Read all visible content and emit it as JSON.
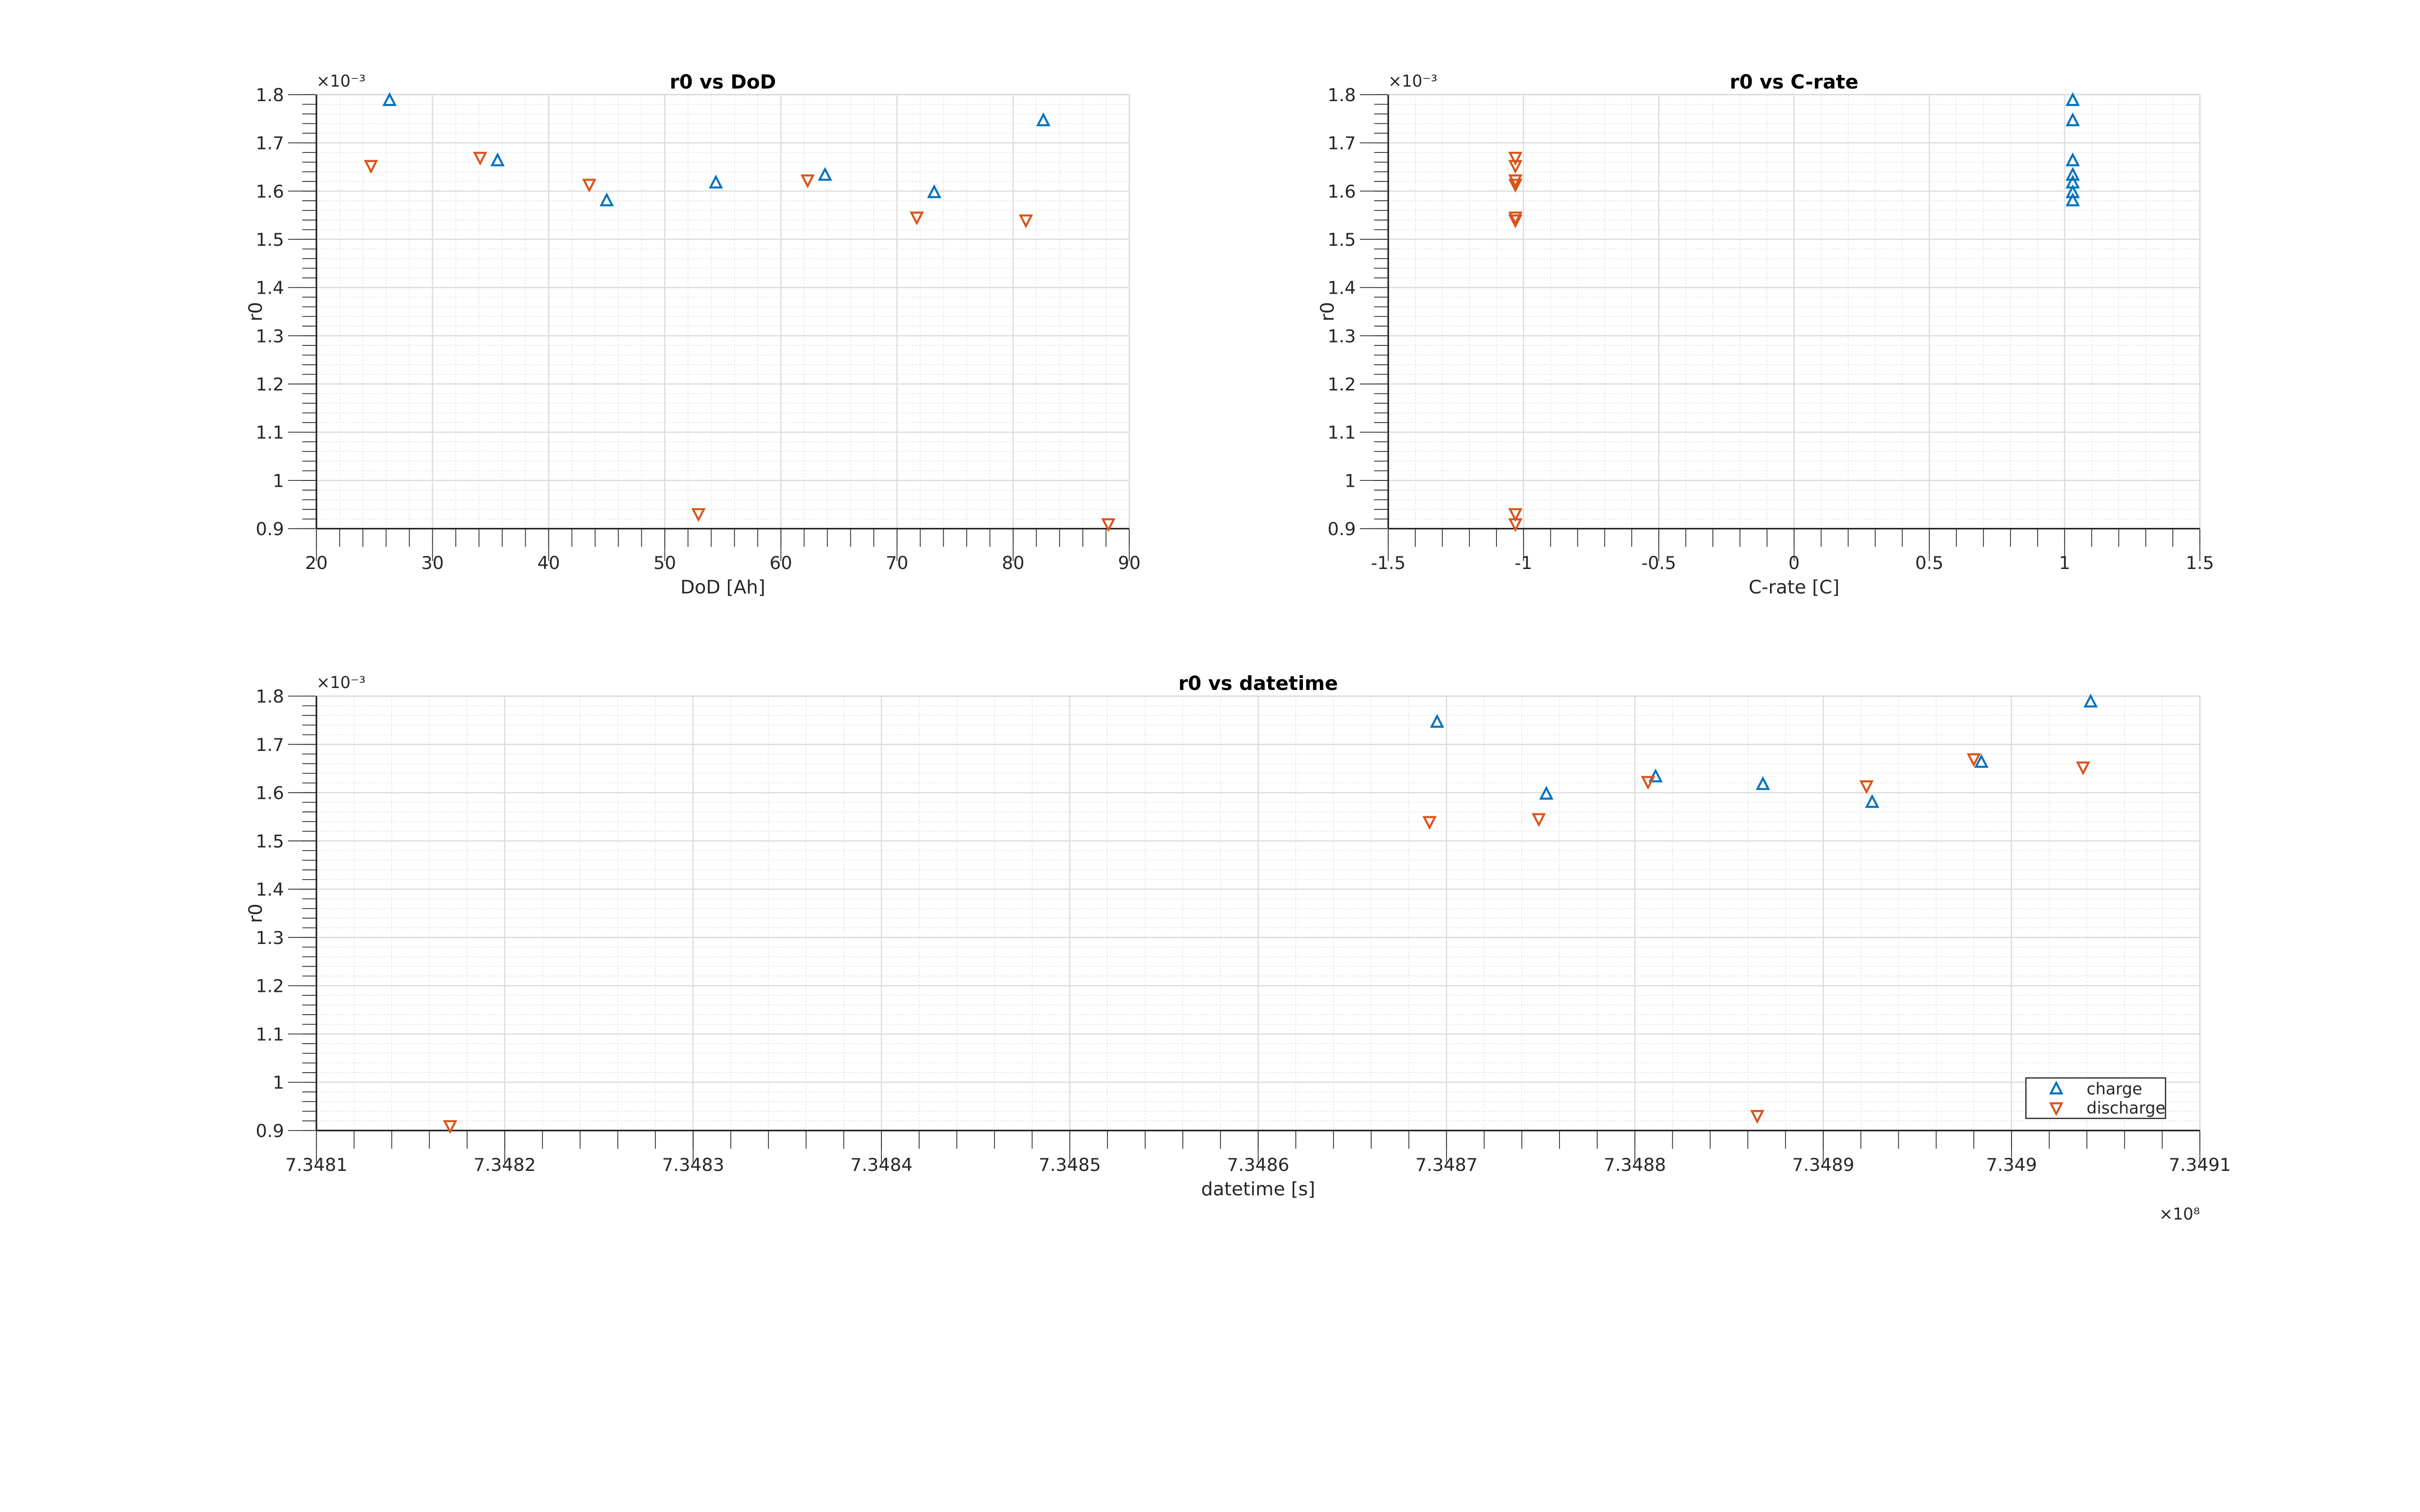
{
  "colors": {
    "charge": "#0072BD",
    "discharge": "#D95319",
    "grid": "#dcdcdc",
    "axis": "#262626"
  },
  "legend": {
    "entries": [
      "charge",
      "discharge"
    ],
    "placement": "bottom-right"
  },
  "chart_data": [
    {
      "type": "scatter",
      "title": "r0 vs DoD",
      "xlabel": "DoD [Ah]",
      "ylabel": "r0",
      "y_exponent": "×10⁻³",
      "xlim": [
        20,
        90
      ],
      "ylim": [
        0.9,
        1.8
      ],
      "xticks": [
        20,
        30,
        40,
        50,
        60,
        70,
        80,
        90
      ],
      "xtick_labels": [
        "20",
        "30",
        "40",
        "50",
        "60",
        "70",
        "80",
        "90"
      ],
      "xminor": 2,
      "yticks": [
        0.9,
        1.0,
        1.1,
        1.2,
        1.3,
        1.4,
        1.5,
        1.6,
        1.7,
        1.8
      ],
      "ytick_labels": [
        "0.9",
        "1",
        "1.1",
        "1.2",
        "1.3",
        "1.4",
        "1.5",
        "1.6",
        "1.7",
        "1.8"
      ],
      "yminor": 0.02,
      "grid": true,
      "series": [
        {
          "name": "charge",
          "marker": "triangle-up",
          "x": [
            26.3,
            35.6,
            45.0,
            54.4,
            63.8,
            73.2,
            82.6
          ],
          "y": [
            1.788,
            1.663,
            1.58,
            1.617,
            1.633,
            1.597,
            1.746
          ]
        },
        {
          "name": "discharge",
          "marker": "triangle-down",
          "x": [
            24.7,
            34.1,
            43.5,
            52.9,
            62.3,
            71.7,
            81.1,
            88.2
          ],
          "y": [
            1.653,
            1.67,
            1.614,
            0.931,
            1.623,
            1.546,
            1.54,
            0.91
          ]
        }
      ]
    },
    {
      "type": "scatter",
      "title": "r0 vs C-rate",
      "xlabel": "C-rate [C]",
      "ylabel": "r0",
      "y_exponent": "×10⁻³",
      "xlim": [
        -1.5,
        1.5
      ],
      "ylim": [
        0.9,
        1.8
      ],
      "xticks": [
        -1.5,
        -1,
        -0.5,
        0,
        0.5,
        1,
        1.5
      ],
      "xtick_labels": [
        "-1.5",
        "-1",
        "-0.5",
        "0",
        "0.5",
        "1",
        "1.5"
      ],
      "xminor": 0.1,
      "yticks": [
        0.9,
        1.0,
        1.1,
        1.2,
        1.3,
        1.4,
        1.5,
        1.6,
        1.7,
        1.8
      ],
      "ytick_labels": [
        "0.9",
        "1",
        "1.1",
        "1.2",
        "1.3",
        "1.4",
        "1.5",
        "1.6",
        "1.7",
        "1.8"
      ],
      "yminor": 0.02,
      "grid": true,
      "series": [
        {
          "name": "charge",
          "marker": "triangle-up",
          "x": [
            1.03,
            1.03,
            1.03,
            1.03,
            1.03,
            1.03,
            1.03
          ],
          "y": [
            1.788,
            1.663,
            1.58,
            1.617,
            1.633,
            1.597,
            1.746
          ]
        },
        {
          "name": "discharge",
          "marker": "triangle-down",
          "x": [
            -1.03,
            -1.03,
            -1.03,
            -1.03,
            -1.03,
            -1.03,
            -1.03,
            -1.03
          ],
          "y": [
            1.653,
            1.67,
            1.614,
            0.931,
            1.623,
            1.546,
            1.54,
            0.91
          ]
        }
      ]
    },
    {
      "type": "scatter",
      "title": "r0 vs datetime",
      "xlabel": "datetime [s]",
      "ylabel": "r0",
      "y_exponent": "×10⁻³",
      "x_exponent": "×10⁸",
      "xlim": [
        7.3481,
        7.3491
      ],
      "ylim": [
        0.9,
        1.8
      ],
      "xticks": [
        7.3481,
        7.3482,
        7.3483,
        7.3484,
        7.3485,
        7.3486,
        7.3487,
        7.3488,
        7.3489,
        7.349,
        7.3491
      ],
      "xtick_labels": [
        "7.3481",
        "7.3482",
        "7.3483",
        "7.3484",
        "7.3485",
        "7.3486",
        "7.3487",
        "7.3488",
        "7.3489",
        "7.349",
        "7.3491"
      ],
      "xminor": 2e-05,
      "yticks": [
        0.9,
        1.0,
        1.1,
        1.2,
        1.3,
        1.4,
        1.5,
        1.6,
        1.7,
        1.8
      ],
      "ytick_labels": [
        "0.9",
        "1",
        "1.1",
        "1.2",
        "1.3",
        "1.4",
        "1.5",
        "1.6",
        "1.7",
        "1.8"
      ],
      "yminor": 0.02,
      "grid": true,
      "legend": true,
      "series": [
        {
          "name": "charge",
          "marker": "triangle-up",
          "x": [
            7.348695,
            7.348753,
            7.348811,
            7.348868,
            7.348926,
            7.348984,
            7.349042
          ],
          "y": [
            1.746,
            1.597,
            1.633,
            1.617,
            1.58,
            1.663,
            1.788
          ]
        },
        {
          "name": "discharge",
          "marker": "triangle-down",
          "x": [
            7.348171,
            7.348691,
            7.348749,
            7.348807,
            7.348865,
            7.348923,
            7.34898,
            7.349038
          ],
          "y": [
            0.91,
            1.54,
            1.546,
            1.623,
            0.931,
            1.614,
            1.67,
            1.653
          ]
        }
      ]
    }
  ]
}
